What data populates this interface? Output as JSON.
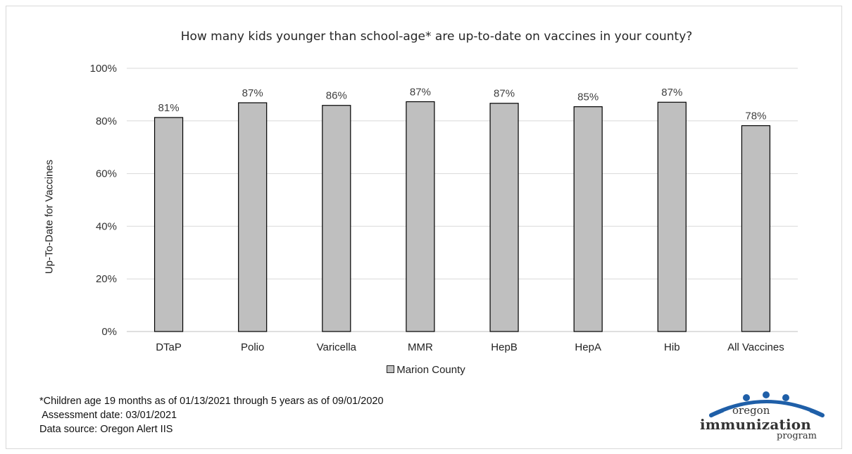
{
  "chart_data": {
    "type": "bar",
    "title": "How many kids younger than school-age* are up-to-date on vaccines in your county?",
    "xlabel": "",
    "ylabel": "Up-To-Date for Vaccines",
    "categories": [
      "DTaP",
      "Polio",
      "Varicella",
      "MMR",
      "HepB",
      "HepA",
      "Hib",
      "All Vaccines"
    ],
    "series": [
      {
        "name": "Marion County",
        "values": [
          81.3,
          86.9,
          85.9,
          87.3,
          86.7,
          85.4,
          87.1,
          78.2
        ],
        "data_labels": [
          "81%",
          "87%",
          "86%",
          "87%",
          "87%",
          "85%",
          "87%",
          "78%"
        ]
      }
    ],
    "ylim": [
      0,
      100
    ],
    "yticks": [
      0,
      20,
      40,
      60,
      80,
      100
    ],
    "ytick_labels": [
      "0%",
      "20%",
      "40%",
      "60%",
      "80%",
      "100%"
    ],
    "grid": true,
    "legend_position": "bottom",
    "colors": {
      "bar_fill": "#bfbfbf",
      "bar_stroke": "#000000",
      "grid": "#d9d9d9"
    }
  },
  "notes": [
    "*Children age 19 months as of 01/13/2021 through 5 years as of 09/01/2020",
    " Assessment date: 03/01/2021",
    "Data source: Oregon Alert IIS"
  ],
  "logo": {
    "line1": "oregon",
    "line2": "immunization",
    "line3": "program",
    "colors": {
      "arc": "#1f5fa8",
      "figure": "#1f5fa8"
    }
  }
}
